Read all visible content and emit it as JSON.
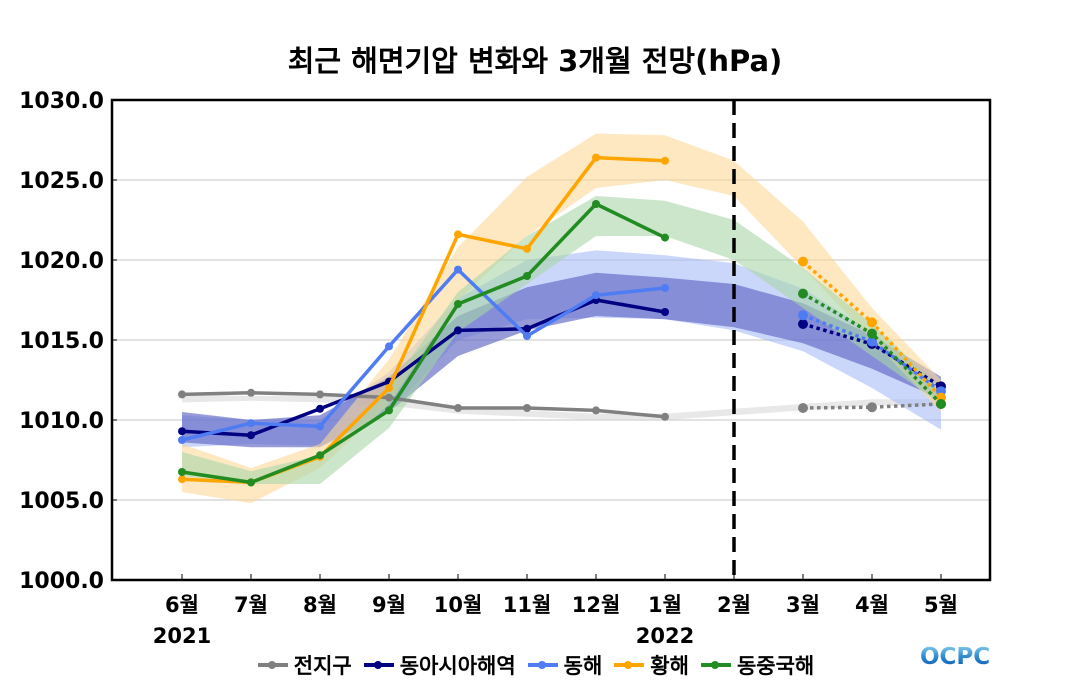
{
  "chart_data": {
    "type": "line",
    "title": "최근 해면기압 변화와 3개월 전망(hPa)",
    "xlabel": "",
    "ylabel": "",
    "ylim": [
      1000.0,
      1030.0
    ],
    "yticks": [
      "1000.0",
      "1005.0",
      "1010.0",
      "1015.0",
      "1020.0",
      "1025.0",
      "1030.0"
    ],
    "categories": [
      "6월",
      "7월",
      "8월",
      "9월",
      "10월",
      "11월",
      "12월",
      "1월",
      "2월",
      "3월",
      "4월",
      "5월"
    ],
    "year_labels": [
      {
        "label": "2021",
        "at": "6월"
      },
      {
        "label": "2022",
        "at": "1월"
      }
    ],
    "forecast_divider_at": "2월",
    "grid": "horizontal",
    "legend_position": "bottom",
    "series": [
      {
        "name": "전지구",
        "color": "#808080",
        "band_color": "#d9d9d9",
        "observed": [
          1011.6,
          1011.7,
          1011.6,
          1011.4,
          1010.75,
          1010.75,
          1010.6,
          1010.2,
          null,
          null,
          null,
          null
        ],
        "forecast": [
          null,
          null,
          null,
          null,
          null,
          null,
          null,
          null,
          null,
          1010.75,
          1010.8,
          1011.0
        ],
        "band_upper": [
          1011.6,
          1011.5,
          1011.5,
          1011.3,
          1010.8,
          1010.6,
          1010.4,
          1010.4,
          1010.7,
          1011.0,
          1011.3,
          1011.3
        ],
        "band_lower": [
          1011.1,
          1011.2,
          1011.1,
          1010.9,
          1010.4,
          1010.2,
          1010.0,
          1010.0,
          1010.3,
          1010.6,
          1010.9,
          1010.9
        ]
      },
      {
        "name": "동아시아해역",
        "color": "#000080",
        "band_color": "#5f67c4",
        "observed": [
          1009.3,
          1009.05,
          1010.7,
          1012.4,
          1015.6,
          1015.7,
          1017.5,
          1016.75,
          null,
          null,
          null,
          null
        ],
        "forecast": [
          null,
          null,
          null,
          null,
          null,
          null,
          null,
          null,
          null,
          1016.0,
          1014.75,
          1012.1
        ],
        "band_upper": [
          1010.5,
          1010.0,
          1010.3,
          1012.7,
          1016.5,
          1018.3,
          1019.2,
          1018.9,
          1018.5,
          1017.3,
          1015.3,
          1012.7
        ],
        "band_lower": [
          1008.6,
          1008.3,
          1008.3,
          1010.5,
          1014.0,
          1015.6,
          1016.5,
          1016.3,
          1015.8,
          1014.8,
          1013.2,
          1011.3
        ]
      },
      {
        "name": "동해",
        "color": "#4f7cf3",
        "band_color": "#a8bdf7",
        "observed": [
          1008.75,
          1009.8,
          1009.6,
          1014.6,
          1019.4,
          1015.25,
          1017.8,
          1018.25,
          null,
          null,
          null,
          null
        ],
        "forecast": [
          null,
          null,
          null,
          null,
          null,
          null,
          null,
          null,
          null,
          1016.55,
          1014.9,
          1011.8
        ],
        "band_upper": [
          1010.3,
          1010.0,
          1010.0,
          1013.0,
          1017.6,
          1020.0,
          1020.6,
          1020.3,
          1019.8,
          1018.2,
          1015.5,
          1012.3
        ],
        "band_lower": [
          1008.3,
          1008.5,
          1008.4,
          1010.5,
          1015.0,
          1016.3,
          1016.4,
          1016.3,
          1015.6,
          1014.3,
          1012.0,
          1009.4
        ]
      },
      {
        "name": "황해",
        "color": "#ffa500",
        "band_color": "#fcd99a",
        "observed": [
          1006.3,
          1006.1,
          1007.7,
          1012.0,
          1021.6,
          1020.7,
          1026.4,
          1026.2,
          null,
          null,
          null,
          null
        ],
        "forecast": [
          null,
          null,
          null,
          null,
          null,
          null,
          null,
          null,
          null,
          1019.9,
          1016.1,
          1011.4
        ],
        "band_upper": [
          1008.5,
          1007.0,
          1008.5,
          1013.8,
          1020.8,
          1025.2,
          1027.9,
          1027.8,
          1026.2,
          1022.4,
          1017.0,
          1012.5
        ],
        "band_lower": [
          1005.5,
          1004.8,
          1007.0,
          1011.0,
          1017.5,
          1021.5,
          1024.5,
          1025.0,
          1024.0,
          1019.5,
          1015.0,
          1010.5
        ]
      },
      {
        "name": "동중국해",
        "color": "#228b22",
        "band_color": "#a8d5a8",
        "observed": [
          1006.75,
          1006.1,
          1007.8,
          1010.6,
          1017.25,
          1019.0,
          1023.5,
          1021.4,
          null,
          null,
          null,
          null
        ],
        "forecast": [
          null,
          null,
          null,
          null,
          null,
          null,
          null,
          null,
          null,
          1017.9,
          1015.4,
          1011.0
        ],
        "band_upper": [
          1008.0,
          1006.8,
          1007.8,
          1012.0,
          1018.0,
          1021.5,
          1024.0,
          1023.7,
          1022.5,
          1019.5,
          1016.0,
          1012.0
        ],
        "band_lower": [
          1006.5,
          1006.0,
          1006.0,
          1009.5,
          1015.5,
          1018.5,
          1021.5,
          1021.5,
          1020.0,
          1017.0,
          1014.0,
          1011.0
        ]
      }
    ]
  },
  "logo_text": "OCPC"
}
